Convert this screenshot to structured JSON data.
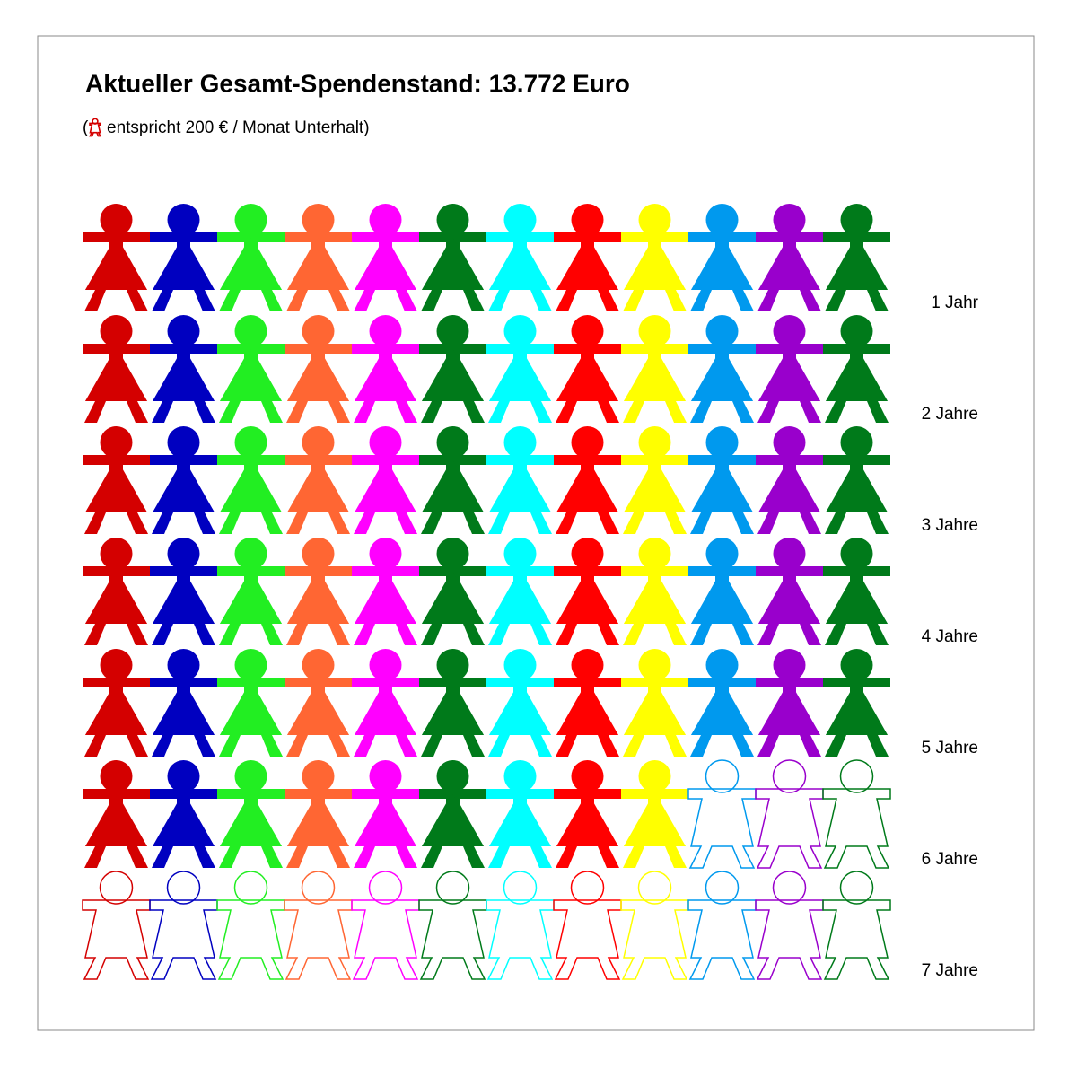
{
  "title": "Aktueller Gesamt-Spendenstand: 13.772 Euro",
  "subtitle_open": "(",
  "subtitle": "entspricht 200 € / Monat Unterhalt)",
  "colors": [
    "#d40000",
    "#0000c0",
    "#22ee22",
    "#ff6633",
    "#ff00ff",
    "#007a1a",
    "#00ffff",
    "#ff0000",
    "#ffff00",
    "#0099ee",
    "#9900cc",
    "#007a1a"
  ],
  "rows": [
    {
      "label": "1 Jahr",
      "filled": 12
    },
    {
      "label": "2 Jahre",
      "filled": 12
    },
    {
      "label": "3 Jahre",
      "filled": 12
    },
    {
      "label": "4 Jahre",
      "filled": 12
    },
    {
      "label": "5 Jahre",
      "filled": 12
    },
    {
      "label": "6 Jahre",
      "filled": 9
    },
    {
      "label": "7 Jahre",
      "filled": 0
    }
  ]
}
